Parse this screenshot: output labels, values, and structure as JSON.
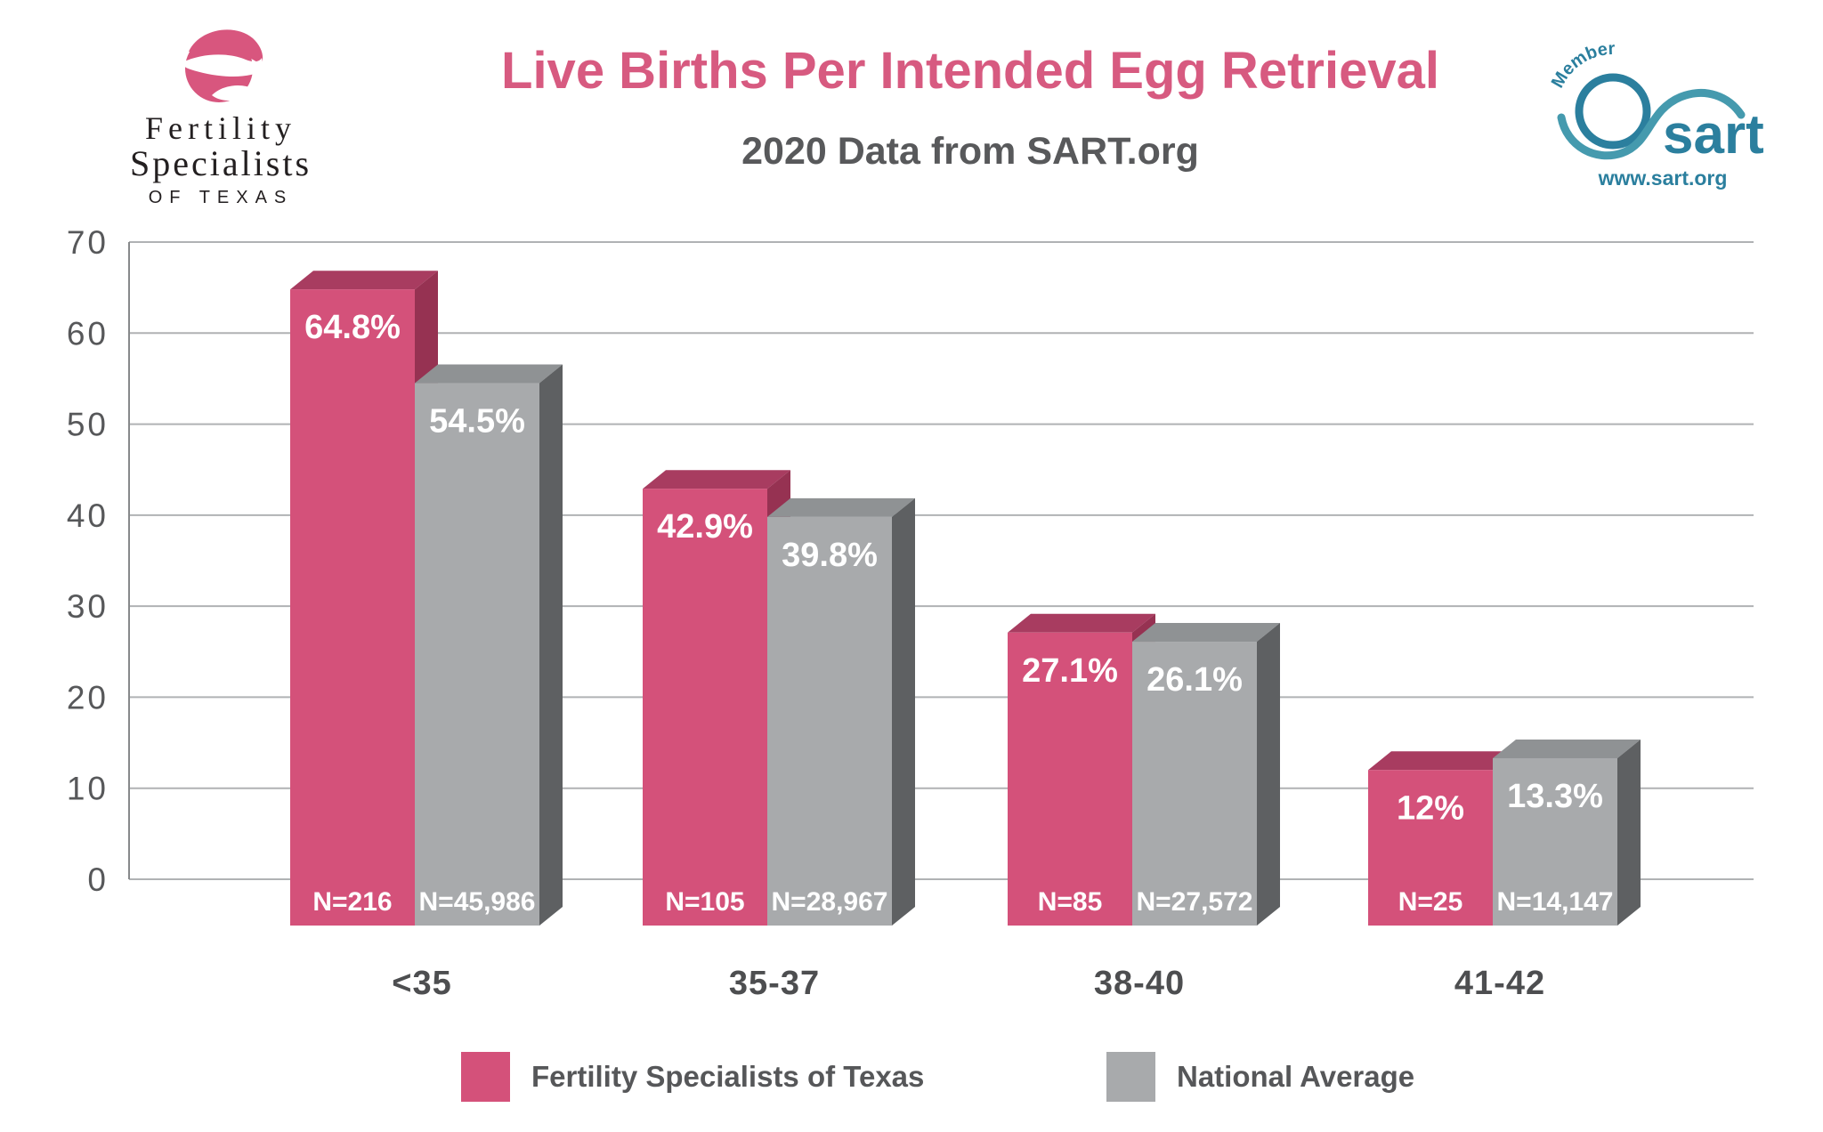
{
  "header": {
    "title": "Live Births Per Intended Egg Retrieval",
    "subtitle": "2020 Data from SART.org",
    "fst_logo": {
      "line1": "Fertility",
      "line2": "Specialists",
      "line3": "OF TEXAS"
    },
    "sart_logo": {
      "member": "Member",
      "name": "sart",
      "url": "www.sart.org"
    }
  },
  "colors": {
    "title_pink": "#d75a80",
    "subtitle_gray": "#58595b",
    "fst_front": "#d4517a",
    "fst_top": "#a83c60",
    "fst_side": "#963252",
    "nat_front": "#a8aaac",
    "nat_top": "#8f9294",
    "nat_side": "#5e6062",
    "grid": "#b0b2b4",
    "axis": "#87898b",
    "tick_text": "#57585a",
    "category_text": "#4d4e50",
    "legend_text": "#565759",
    "bar_label_white": "#ffffff",
    "logo_pink": "#d8567e",
    "logo_text": "#231f20",
    "sart_teal": "#2b7f9e",
    "sart_swoosh": "#459aae"
  },
  "chart_data": {
    "type": "bar",
    "title": "Live Births Per Intended Egg Retrieval",
    "subtitle": "2020 Data from SART.org",
    "categories": [
      "<35",
      "35-37",
      "38-40",
      "41-42"
    ],
    "series": [
      {
        "name": "Fertility Specialists of Texas",
        "values": [
          64.8,
          42.9,
          27.1,
          12
        ],
        "labels": [
          "64.8%",
          "42.9%",
          "27.1%",
          "12%"
        ],
        "n_labels": [
          "N=216",
          "N=105",
          "N=85",
          "N=25"
        ]
      },
      {
        "name": "National Average",
        "values": [
          54.5,
          39.8,
          26.1,
          13.3
        ],
        "labels": [
          "54.5%",
          "39.8%",
          "26.1%",
          "13.3%"
        ],
        "n_labels": [
          "N=45,986",
          "N=28,967",
          "N=27,572",
          "N=14,147"
        ]
      }
    ],
    "y_ticks": [
      0,
      10,
      20,
      30,
      40,
      50,
      60,
      70
    ],
    "ylim": [
      0,
      70
    ],
    "xlabel": "",
    "ylabel": "",
    "grid": true,
    "legend_position": "bottom",
    "style": "3d-oblique-bars, N counts shown below baseline inside bars"
  },
  "legend": {
    "items": [
      {
        "label": "Fertility Specialists of Texas"
      },
      {
        "label": "National Average"
      }
    ]
  }
}
